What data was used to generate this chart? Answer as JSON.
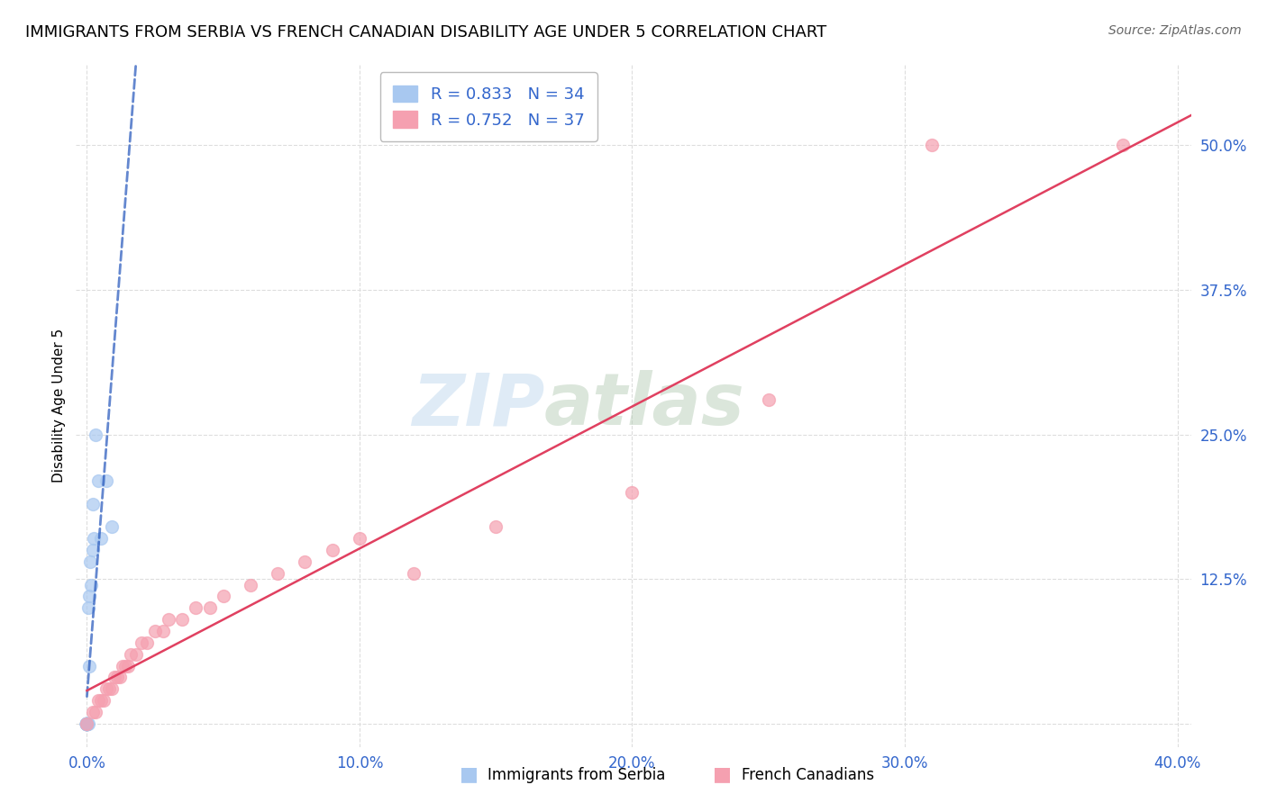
{
  "title": "IMMIGRANTS FROM SERBIA VS FRENCH CANADIAN DISABILITY AGE UNDER 5 CORRELATION CHART",
  "source": "Source: ZipAtlas.com",
  "ylabel": "Disability Age Under 5",
  "xlabel_serbia": "Immigrants from Serbia",
  "xlabel_fc": "French Canadians",
  "watermark_zip": "ZIP",
  "watermark_atlas": "atlas",
  "serbia_R": 0.833,
  "serbia_N": 34,
  "fc_R": 0.752,
  "fc_N": 37,
  "serbia_color": "#A8C8F0",
  "serbia_line_color": "#2255BB",
  "fc_color": "#F5A0B0",
  "fc_line_color": "#E04060",
  "serbia_points_x": [
    0.0,
    0.0,
    0.0,
    0.0,
    0.0,
    0.0,
    0.0,
    0.0,
    0.0,
    0.0,
    0.0,
    0.0,
    0.0,
    0.0,
    0.0,
    0.0,
    0.0,
    0.0,
    0.0,
    0.0,
    0.0004,
    0.0005,
    0.0008,
    0.001,
    0.0012,
    0.0015,
    0.002,
    0.0022,
    0.0025,
    0.003,
    0.004,
    0.005,
    0.007,
    0.009
  ],
  "serbia_points_y": [
    0.0,
    0.0,
    0.0,
    0.0,
    0.0,
    0.0,
    0.0,
    0.0,
    0.0,
    0.0,
    0.0,
    0.0,
    0.0,
    0.0,
    0.0,
    0.0,
    0.0,
    0.0,
    0.0,
    0.0,
    0.0,
    0.1,
    0.05,
    0.11,
    0.14,
    0.12,
    0.15,
    0.19,
    0.16,
    0.25,
    0.21,
    0.16,
    0.21,
    0.17
  ],
  "fc_points_x": [
    0.0,
    0.002,
    0.003,
    0.004,
    0.005,
    0.006,
    0.007,
    0.008,
    0.009,
    0.01,
    0.011,
    0.012,
    0.013,
    0.014,
    0.015,
    0.016,
    0.018,
    0.02,
    0.022,
    0.025,
    0.028,
    0.03,
    0.035,
    0.04,
    0.045,
    0.05,
    0.06,
    0.07,
    0.08,
    0.09,
    0.1,
    0.12,
    0.15,
    0.2,
    0.25,
    0.31,
    0.38
  ],
  "fc_points_y": [
    0.0,
    0.01,
    0.01,
    0.02,
    0.02,
    0.02,
    0.03,
    0.03,
    0.03,
    0.04,
    0.04,
    0.04,
    0.05,
    0.05,
    0.05,
    0.06,
    0.06,
    0.07,
    0.07,
    0.08,
    0.08,
    0.09,
    0.09,
    0.1,
    0.1,
    0.11,
    0.12,
    0.13,
    0.14,
    0.15,
    0.16,
    0.13,
    0.17,
    0.2,
    0.28,
    0.5,
    0.5
  ],
  "xlim": [
    -0.004,
    0.405
  ],
  "ylim": [
    -0.02,
    0.57
  ],
  "xticks": [
    0.0,
    0.1,
    0.2,
    0.3,
    0.4
  ],
  "yticks": [
    0.0,
    0.125,
    0.25,
    0.375,
    0.5
  ],
  "xtick_labels": [
    "0.0%",
    "10.0%",
    "20.0%",
    "30.0%",
    "40.0%"
  ],
  "ytick_labels": [
    "",
    "12.5%",
    "25.0%",
    "37.5%",
    "50.0%"
  ],
  "background_color": "#FFFFFF",
  "grid_color": "#DDDDDD",
  "title_fontsize": 13,
  "axis_label_fontsize": 11,
  "tick_fontsize": 12,
  "legend_fontsize": 13,
  "tick_color": "#3366CC"
}
